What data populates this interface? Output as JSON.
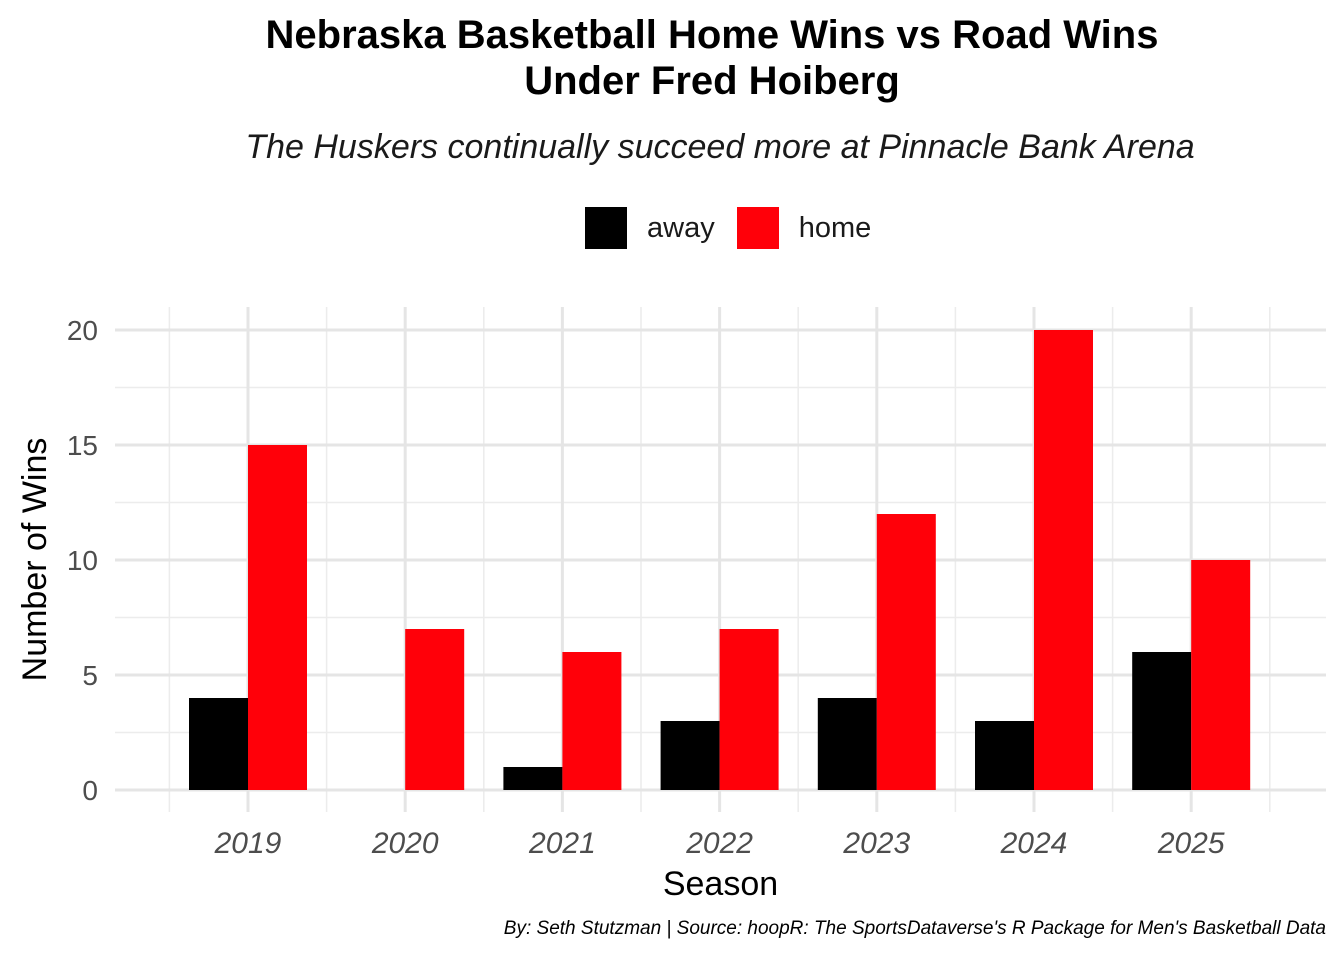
{
  "chart_data": {
    "type": "bar",
    "title": "Nebraska Basketball Home Wins vs Road Wins\nUnder Fred Hoiberg",
    "subtitle": "The Huskers continually succeed more at Pinnacle Bank Arena",
    "xlabel": "Season",
    "ylabel": "Number of Wins",
    "caption": "By: Seth Stutzman | Source: hoopR: The SportsDataverse's R Package for Men's Basketball Data",
    "categories": [
      "2019",
      "2020",
      "2021",
      "2022",
      "2023",
      "2024",
      "2025"
    ],
    "series": [
      {
        "name": "away",
        "color": "#000000",
        "values": [
          4,
          0,
          1,
          3,
          4,
          3,
          6
        ]
      },
      {
        "name": "home",
        "color": "#FF0009",
        "values": [
          15,
          7,
          6,
          7,
          12,
          20,
          10
        ]
      }
    ],
    "ylim": [
      0,
      20
    ],
    "yticks": [
      "0",
      "5",
      "10",
      "15",
      "20"
    ],
    "grid": true,
    "legend_position": "top"
  }
}
